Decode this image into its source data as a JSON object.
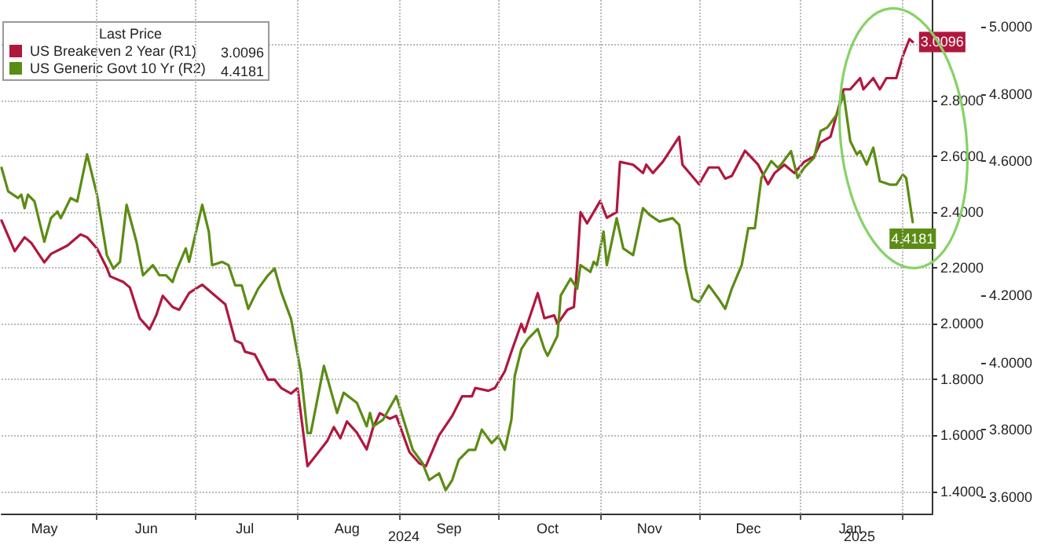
{
  "chart_data": {
    "type": "line",
    "legend_title": "Last Price",
    "legend": "top left",
    "grid": true,
    "line_style": "solid",
    "marker": "none",
    "xlim": [
      "2024-05-03",
      "2025-02-10"
    ],
    "xticks": [
      {
        "value": "2024-05-16",
        "label": "May"
      },
      {
        "value": "2024-06-01",
        "label": null
      },
      {
        "value": "2024-06-16",
        "label": "Jun"
      },
      {
        "value": "2024-07-01",
        "label": null
      },
      {
        "value": "2024-07-16",
        "label": "Jul"
      },
      {
        "value": "2024-08-01",
        "label": null
      },
      {
        "value": "2024-08-16",
        "label": "Aug"
      },
      {
        "value": "2024-09-01",
        "label": null
      },
      {
        "value": "2024-09-16",
        "label": "Sep"
      },
      {
        "value": "2024-10-01",
        "label": null
      },
      {
        "value": "2024-10-16",
        "label": "Oct"
      },
      {
        "value": "2024-11-01",
        "label": null
      },
      {
        "value": "2024-11-16",
        "label": "Nov"
      },
      {
        "value": "2024-12-01",
        "label": null
      },
      {
        "value": "2024-12-16",
        "label": "Dec"
      },
      {
        "value": "2025-01-01",
        "label": null
      },
      {
        "value": "2025-01-16",
        "label": "Jan"
      },
      {
        "value": "2025-02-01",
        "label": null
      }
    ],
    "ylim": [
      1.32,
      3.16
    ],
    "yticks": [
      {
        "value": 1.4,
        "label": "1.4000"
      },
      {
        "value": 1.6,
        "label": "1.6000"
      },
      {
        "value": 1.8,
        "label": "1.8000"
      },
      {
        "value": 2.0,
        "label": "2.0000"
      },
      {
        "value": 2.2,
        "label": "2.2000"
      },
      {
        "value": 2.4,
        "label": "2.4000"
      },
      {
        "value": 2.6,
        "label": "2.6000"
      },
      {
        "value": 2.8,
        "label": "2.8000"
      },
      {
        "value": 3.0,
        "label": null
      }
    ],
    "y2lim": [
      3.55,
      5.08
    ],
    "y2ticks": [
      {
        "value": 3.6,
        "label": "3.6000"
      },
      {
        "value": 3.8,
        "label": "3.8000"
      },
      {
        "value": 4.0,
        "label": "4.0000"
      },
      {
        "value": 4.2,
        "label": "4.2000"
      },
      {
        "value": 4.6,
        "label": "4.6000"
      },
      {
        "value": 4.8,
        "label": "4.8000"
      },
      {
        "value": 5.0,
        "label": "5.0000"
      }
    ],
    "annotations": [
      "2024",
      "2025"
    ],
    "series": [
      {
        "name": "US Breakeven 2 Year (R1)",
        "color": "#b0173e",
        "axis": "y",
        "x": [
          "2024-05-03",
          "2024-05-07",
          "2024-05-10",
          "2024-05-12",
          "2024-05-16",
          "2024-05-18",
          "2024-05-23",
          "2024-05-27",
          "2024-05-29",
          "2024-06-01",
          "2024-06-04",
          "2024-06-05",
          "2024-06-09",
          "2024-06-11",
          "2024-06-14",
          "2024-06-17",
          "2024-06-19",
          "2024-06-21",
          "2024-06-24",
          "2024-06-26",
          "2024-06-29",
          "2024-07-03",
          "2024-07-06",
          "2024-07-10",
          "2024-07-13",
          "2024-07-15",
          "2024-07-16",
          "2024-07-19",
          "2024-07-23",
          "2024-07-25",
          "2024-07-27",
          "2024-07-30",
          "2024-08-01",
          "2024-08-04",
          "2024-08-06",
          "2024-08-10",
          "2024-08-12",
          "2024-08-14",
          "2024-08-16",
          "2024-08-19",
          "2024-08-22",
          "2024-08-24",
          "2024-08-26",
          "2024-08-29",
          "2024-08-31",
          "2024-09-04",
          "2024-09-07",
          "2024-09-09",
          "2024-09-13",
          "2024-09-17",
          "2024-09-20",
          "2024-09-23",
          "2024-09-24",
          "2024-09-28",
          "2024-09-30",
          "2024-10-03",
          "2024-10-05",
          "2024-10-08",
          "2024-10-09",
          "2024-10-13",
          "2024-10-15",
          "2024-10-18",
          "2024-10-19",
          "2024-10-22",
          "2024-10-24",
          "2024-10-25",
          "2024-10-26",
          "2024-10-28",
          "2024-11-01",
          "2024-11-03",
          "2024-11-06",
          "2024-11-07",
          "2024-11-11",
          "2024-11-14",
          "2024-11-15",
          "2024-11-17",
          "2024-11-20",
          "2024-11-25",
          "2024-11-26",
          "2024-12-01",
          "2024-12-04",
          "2024-12-07",
          "2024-12-09",
          "2024-12-11",
          "2024-12-15",
          "2024-12-19",
          "2024-12-22",
          "2024-12-24",
          "2024-12-27",
          "2024-12-30",
          "2025-01-02",
          "2025-01-05",
          "2025-01-07",
          "2025-01-10",
          "2025-01-14",
          "2025-01-16",
          "2025-01-19",
          "2025-01-20",
          "2025-01-23",
          "2025-01-25",
          "2025-01-27",
          "2025-01-30",
          "2025-02-01",
          "2025-02-03",
          "2025-02-04"
        ],
        "values": [
          2.37,
          2.26,
          2.31,
          2.29,
          2.22,
          2.25,
          2.28,
          2.32,
          2.31,
          2.27,
          2.2,
          2.17,
          2.15,
          2.13,
          2.02,
          1.98,
          2.03,
          2.1,
          2.06,
          2.05,
          2.11,
          2.14,
          2.11,
          2.07,
          1.94,
          1.93,
          1.9,
          1.89,
          1.8,
          1.8,
          1.77,
          1.75,
          1.77,
          1.49,
          1.52,
          1.58,
          1.63,
          1.59,
          1.65,
          1.61,
          1.55,
          1.63,
          1.68,
          1.66,
          1.67,
          1.54,
          1.5,
          1.49,
          1.6,
          1.67,
          1.74,
          1.74,
          1.77,
          1.76,
          1.77,
          1.83,
          1.9,
          2.0,
          1.97,
          2.11,
          2.02,
          2.03,
          2.0,
          2.05,
          2.06,
          2.21,
          2.4,
          2.36,
          2.44,
          2.38,
          2.4,
          2.58,
          2.57,
          2.54,
          2.57,
          2.54,
          2.58,
          2.67,
          2.57,
          2.5,
          2.56,
          2.56,
          2.52,
          2.53,
          2.62,
          2.57,
          2.5,
          2.54,
          2.57,
          2.54,
          2.58,
          2.6,
          2.65,
          2.67,
          2.84,
          2.84,
          2.88,
          2.84,
          2.88,
          2.84,
          2.88,
          2.88,
          2.96,
          3.02,
          3.0096
        ],
        "value_labels": [
          null,
          null,
          null,
          null,
          null,
          null,
          null,
          null,
          null,
          null,
          null,
          null,
          null,
          null,
          null,
          null,
          null,
          null,
          null,
          null,
          null,
          null,
          null,
          null,
          null,
          null,
          null,
          null,
          null,
          null,
          null,
          null,
          null,
          null,
          null,
          null,
          null,
          null,
          null,
          null,
          null,
          null,
          null,
          null,
          null,
          null,
          null,
          null,
          null,
          null,
          null,
          null,
          null,
          null,
          null,
          null,
          null,
          null,
          null,
          null,
          null,
          null,
          null,
          null,
          null,
          null,
          null,
          null,
          null,
          null,
          null,
          null,
          null,
          null,
          null,
          null,
          null,
          null,
          null,
          null,
          null,
          null,
          null,
          null,
          null,
          null,
          null,
          null,
          null,
          null,
          null,
          null,
          null,
          null,
          null,
          null,
          null,
          null,
          null,
          null,
          null,
          null,
          null,
          null,
          "3.0096"
        ]
      },
      {
        "name": "US Generic Govt 10 Yr (R2)",
        "color": "#5b8c14",
        "axis": "y2",
        "x": [
          "2024-05-03",
          "2024-05-05",
          "2024-05-08",
          "2024-05-09",
          "2024-05-10",
          "2024-05-11",
          "2024-05-13",
          "2024-05-16",
          "2024-05-18",
          "2024-05-20",
          "2024-05-21",
          "2024-05-24",
          "2024-05-26",
          "2024-05-29",
          "2024-06-01",
          "2024-06-04",
          "2024-06-06",
          "2024-06-08",
          "2024-06-10",
          "2024-06-13",
          "2024-06-15",
          "2024-06-18",
          "2024-06-20",
          "2024-06-22",
          "2024-06-24",
          "2024-06-25",
          "2024-06-28",
          "2024-06-29",
          "2024-07-03",
          "2024-07-05",
          "2024-07-06",
          "2024-07-09",
          "2024-07-11",
          "2024-07-13",
          "2024-07-15",
          "2024-07-17",
          "2024-07-20",
          "2024-07-23",
          "2024-07-25",
          "2024-07-27",
          "2024-07-30",
          "2024-08-02",
          "2024-08-04",
          "2024-08-05",
          "2024-08-09",
          "2024-08-13",
          "2024-08-15",
          "2024-08-19",
          "2024-08-22",
          "2024-08-23",
          "2024-08-24",
          "2024-08-27",
          "2024-08-31",
          "2024-09-05",
          "2024-09-08",
          "2024-09-10",
          "2024-09-13",
          "2024-09-15",
          "2024-09-17",
          "2024-09-19",
          "2024-09-22",
          "2024-09-24",
          "2024-09-26",
          "2024-09-29",
          "2024-10-01",
          "2024-10-03",
          "2024-10-05",
          "2024-10-06",
          "2024-10-08",
          "2024-10-10",
          "2024-10-12",
          "2024-10-13",
          "2024-10-15",
          "2024-10-16",
          "2024-10-19",
          "2024-10-20",
          "2024-10-23",
          "2024-10-25",
          "2024-10-26",
          "2024-10-29",
          "2024-10-30",
          "2024-10-31",
          "2024-11-02",
          "2024-11-03",
          "2024-11-06",
          "2024-11-08",
          "2024-11-11",
          "2024-11-14",
          "2024-11-16",
          "2024-11-19",
          "2024-11-23",
          "2024-11-25",
          "2024-11-27",
          "2024-11-29",
          "2024-12-01",
          "2024-12-04",
          "2024-12-07",
          "2024-12-09",
          "2024-12-11",
          "2024-12-14",
          "2024-12-16",
          "2024-12-18",
          "2024-12-20",
          "2024-12-23",
          "2024-12-25",
          "2024-12-26",
          "2024-12-29",
          "2024-12-31",
          "2025-01-02",
          "2025-01-05",
          "2025-01-07",
          "2025-01-09",
          "2025-01-12",
          "2025-01-14",
          "2025-01-16",
          "2025-01-18",
          "2025-01-19",
          "2025-01-21",
          "2025-01-23",
          "2025-01-25",
          "2025-01-28",
          "2025-01-30",
          "2025-02-01",
          "2025-02-02",
          "2025-02-04"
        ],
        "values": [
          4.58,
          4.51,
          4.49,
          4.5,
          4.46,
          4.5,
          4.48,
          4.36,
          4.43,
          4.45,
          4.43,
          4.49,
          4.48,
          4.62,
          4.5,
          4.32,
          4.28,
          4.3,
          4.47,
          4.36,
          4.26,
          4.29,
          4.26,
          4.26,
          4.24,
          4.27,
          4.34,
          4.3,
          4.47,
          4.39,
          4.29,
          4.3,
          4.29,
          4.23,
          4.23,
          4.16,
          4.22,
          4.26,
          4.28,
          4.21,
          4.13,
          3.97,
          3.79,
          3.79,
          3.99,
          3.85,
          3.91,
          3.88,
          3.81,
          3.85,
          3.81,
          3.83,
          3.9,
          3.74,
          3.7,
          3.65,
          3.67,
          3.62,
          3.65,
          3.71,
          3.74,
          3.74,
          3.8,
          3.76,
          3.78,
          3.74,
          3.83,
          3.96,
          4.04,
          4.07,
          4.09,
          4.1,
          4.04,
          4.02,
          4.08,
          4.2,
          4.25,
          4.22,
          4.29,
          4.27,
          4.3,
          4.29,
          4.39,
          4.29,
          4.43,
          4.34,
          4.32,
          4.46,
          4.44,
          4.42,
          4.43,
          4.41,
          4.28,
          4.19,
          4.18,
          4.23,
          4.19,
          4.16,
          4.22,
          4.29,
          4.4,
          4.4,
          4.55,
          4.6,
          4.58,
          4.59,
          4.63,
          4.55,
          4.58,
          4.61,
          4.69,
          4.7,
          4.74,
          4.8,
          4.66,
          4.62,
          4.63,
          4.59,
          4.64,
          4.54,
          4.53,
          4.53,
          4.56,
          4.55,
          4.4181
        ],
        "value_labels": [
          null,
          null,
          null,
          null,
          null,
          null,
          null,
          null,
          null,
          null,
          null,
          null,
          null,
          null,
          null,
          null,
          null,
          null,
          null,
          null,
          null,
          null,
          null,
          null,
          null,
          null,
          null,
          null,
          null,
          null,
          null,
          null,
          null,
          null,
          null,
          null,
          null,
          null,
          null,
          null,
          null,
          null,
          null,
          null,
          null,
          null,
          null,
          null,
          null,
          null,
          null,
          null,
          null,
          null,
          null,
          null,
          null,
          null,
          null,
          null,
          null,
          null,
          null,
          null,
          null,
          null,
          null,
          null,
          null,
          null,
          null,
          null,
          null,
          null,
          null,
          null,
          null,
          null,
          null,
          null,
          null,
          null,
          null,
          null,
          null,
          null,
          null,
          null,
          null,
          null,
          null,
          null,
          null,
          null,
          null,
          null,
          null,
          null,
          null,
          null,
          null,
          null,
          null,
          null,
          null,
          null,
          null,
          null,
          null,
          null,
          null,
          null,
          null,
          null,
          null,
          null,
          null,
          null,
          null,
          null,
          null,
          null,
          null,
          null,
          "4.4181"
        ]
      }
    ]
  }
}
